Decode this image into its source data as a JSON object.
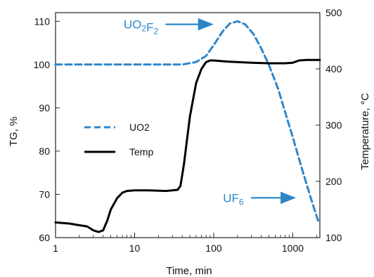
{
  "chart_data": {
    "type": "line",
    "xlabel": "Time, min",
    "ylabel_left": "TG, %",
    "ylabel_right": "Temperature, °C",
    "x_scale": "log",
    "xlim": [
      1,
      2200
    ],
    "ylim_left": [
      60,
      112
    ],
    "ylim_right": [
      100,
      500
    ],
    "x_ticks": [
      1,
      10,
      100,
      1000
    ],
    "x_tick_labels": [
      "1",
      "10",
      "100",
      "1000"
    ],
    "y_left_ticks": [
      60,
      70,
      80,
      90,
      100,
      110
    ],
    "y_left_tick_labels": [
      "60",
      "70",
      "80",
      "90",
      "100",
      "110"
    ],
    "y_right_ticks": [
      100,
      200,
      300,
      400,
      500
    ],
    "y_right_tick_labels": [
      "100",
      "200",
      "300",
      "400",
      "500"
    ],
    "grid": false,
    "legend_position": "left-middle",
    "series": [
      {
        "name": "UO2",
        "axis": "left",
        "style": "dashed",
        "color": "#2e86c9",
        "x": [
          1,
          10,
          40,
          60,
          80,
          100,
          130,
          160,
          200,
          250,
          320,
          400,
          500,
          650,
          800,
          1000,
          1300,
          1700,
          2100
        ],
        "y": [
          100,
          100,
          100,
          100.6,
          102,
          104.5,
          107.7,
          109.5,
          110,
          109.3,
          107,
          103.7,
          99.9,
          94.5,
          89,
          83.2,
          76,
          69,
          63.8
        ]
      },
      {
        "name": "Temp",
        "axis": "right",
        "style": "solid",
        "color": "#000000",
        "x": [
          1,
          1.5,
          2,
          2.5,
          3,
          3.5,
          4,
          4.5,
          5,
          6,
          7,
          8,
          10,
          15,
          25,
          35,
          38,
          42,
          50,
          60,
          70,
          80,
          90,
          100,
          150,
          300,
          500,
          800,
          1000,
          1200,
          1500,
          2200
        ],
        "y": [
          127,
          125,
          122,
          120,
          113,
          110,
          113,
          130,
          150,
          170,
          180,
          183,
          184,
          184,
          183,
          185,
          192,
          230,
          315,
          375,
          400,
          412,
          415,
          415,
          413,
          411,
          410,
          410,
          411,
          415,
          416,
          416
        ]
      }
    ],
    "annotations": [
      {
        "label": "UO2F2",
        "base": "UO",
        "sub1": "2",
        "mid": "F",
        "sub2": "2",
        "arrow": "right",
        "x_min": 95,
        "y_pct": 109.3
      },
      {
        "label": "UF6",
        "base": "UF",
        "sub1": "6",
        "mid": "",
        "sub2": "",
        "arrow": "right",
        "x_min": 1050,
        "y_pct": 69.2
      }
    ]
  }
}
